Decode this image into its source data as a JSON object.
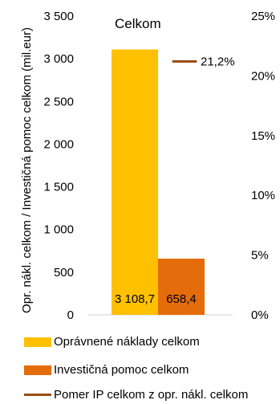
{
  "chart_data": {
    "type": "bar",
    "title": "Celkom",
    "ylabel": "Opr. nákl. celkom / Investičná pomoc celkom (mil.eur)",
    "ylim": [
      0,
      3500
    ],
    "yticks": [
      "0",
      "500",
      "1 000",
      "1 500",
      "2 000",
      "2 500",
      "3 000",
      "3 500"
    ],
    "y2lim": [
      0,
      25
    ],
    "y2ticks": [
      "0%",
      "5%",
      "10%",
      "15%",
      "20%",
      "25%"
    ],
    "grid": false,
    "series": [
      {
        "name": "Oprávnené náklady celkom",
        "value": 3108.7,
        "label": "3 108,7",
        "color": "#FFC000"
      },
      {
        "name": "Investičná pomoc celkom",
        "value": 658.4,
        "label": "658,4",
        "color": "#E46C0A"
      }
    ],
    "ratio": {
      "name": "Pomer IP celkom z opr. nákl. celkom",
      "value": 21.2,
      "label": "21,2%",
      "color": "#9C4A14"
    },
    "legend_position": "bottom"
  }
}
